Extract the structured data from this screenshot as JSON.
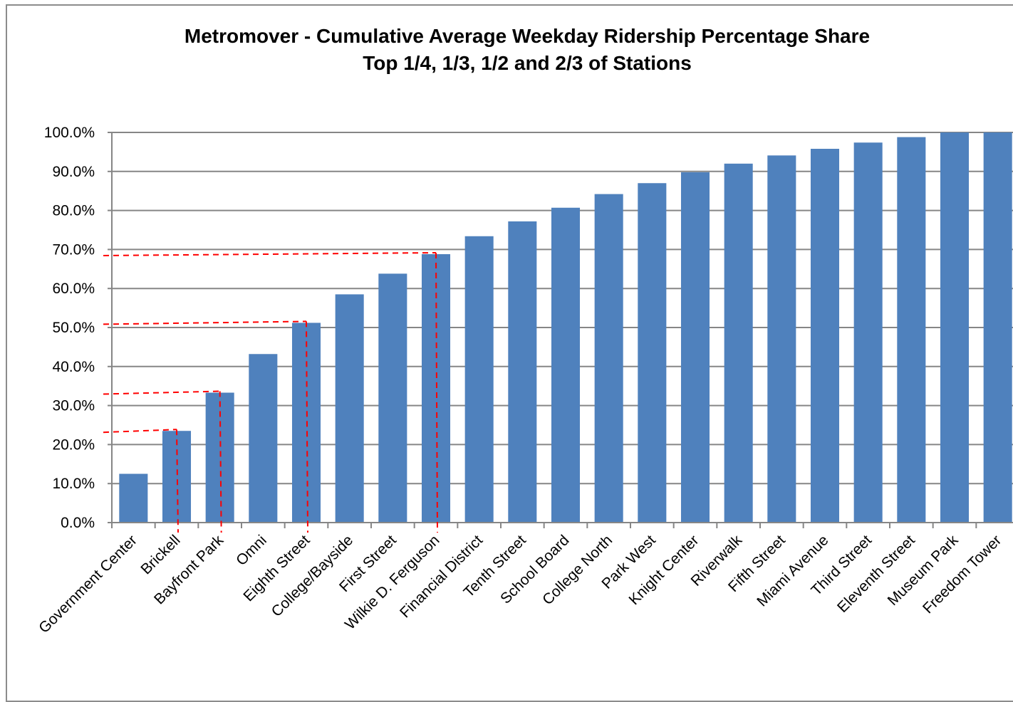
{
  "chart_data": {
    "type": "bar",
    "title": "Metromover - Cumulative Average Weekday Ridership Percentage Share",
    "subtitle": "Top 1/4, 1/3, 1/2 and 2/3 of Stations",
    "xlabel": "",
    "ylabel": "",
    "ylim": [
      0,
      100
    ],
    "y_ticks": [
      0,
      10,
      20,
      30,
      40,
      50,
      60,
      70,
      80,
      90,
      100
    ],
    "y_tick_labels": [
      "0.0%",
      "10.0%",
      "20.0%",
      "30.0%",
      "40.0%",
      "50.0%",
      "60.0%",
      "70.0%",
      "80.0%",
      "90.0%",
      "100.0%"
    ],
    "grid": true,
    "legend": "none",
    "categories": [
      "Government Center",
      "Brickell",
      "Bayfront Park",
      "Omni",
      "Eighth Street",
      "College/Bayside",
      "First Street",
      "Wilkie D. Ferguson",
      "Financial District",
      "Tenth Street",
      "School Board",
      "College North",
      "Park West",
      "Knight Center",
      "Riverwalk",
      "Fifth Street",
      "Miami Avenue",
      "Third Street",
      "Eleventh Street",
      "Museum Park",
      "Freedom Tower"
    ],
    "values": [
      12.5,
      23.5,
      33.3,
      43.2,
      51.2,
      58.5,
      63.8,
      68.8,
      73.4,
      77.2,
      80.7,
      84.2,
      87.0,
      89.8,
      92.0,
      94.1,
      95.8,
      97.4,
      98.8,
      100.0,
      100.0
    ],
    "reference_lines": [
      {
        "category": "Brickell",
        "value": 23.5
      },
      {
        "category": "Bayfront Park",
        "value": 33.3
      },
      {
        "category": "Eighth Street",
        "value": 51.2
      },
      {
        "category": "Wilkie D. Ferguson",
        "value": 68.8
      }
    ],
    "colors": {
      "bar": "#4f81bd",
      "grid": "#868686",
      "axis": "#868686",
      "reference_line": "#ff0000"
    }
  }
}
